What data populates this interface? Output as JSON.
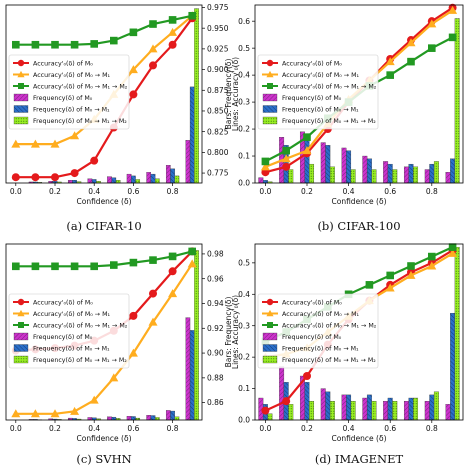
{
  "colors": {
    "m0": "#e41a1c",
    "m0m1": "#ffad1f",
    "m0m1m2": "#229922",
    "bar_m0": "#cc33cc",
    "bar_m0m1": "#2b6fc9",
    "bar_m0m1m2": "#99ee22"
  },
  "legend": [
    "Accuracy'₀(δ) of M₀",
    "Accuracy'₀(δ) of M₀ → M₁",
    "Accuracy'₀(δ) of M₀ → M₁ → M₂",
    "Frequency(δ) of M₀",
    "Frequency(δ) of M₀ → M₁",
    "Frequency(δ) of M₀ → M₁ → M₂"
  ],
  "chart_data": [
    {
      "type": "bar",
      "panel": "a",
      "caption": "(a) CIFAR-10",
      "xlabel": "Confidence (δ)",
      "ylabel_right": "Lines: Accuracy'₀(δ)",
      "x_ticks": [
        "0.0",
        "0.2",
        "0.4",
        "0.6",
        "0.8"
      ],
      "xlim": [
        -0.05,
        0.95
      ],
      "right_ticks": [
        "0.775",
        "0.800",
        "0.825",
        "0.850",
        "0.875",
        "0.900",
        "0.925",
        "0.950",
        "0.975"
      ],
      "right_lim": [
        0.763,
        0.978
      ],
      "bar_lim": [
        0,
        0.5
      ],
      "bar_x": [
        0.0,
        0.1,
        0.2,
        0.3,
        0.4,
        0.5,
        0.6,
        0.7,
        0.8,
        0.9
      ],
      "bars": [
        [
          0.0,
          0.003,
          0.005,
          0.008,
          0.012,
          0.018,
          0.025,
          0.03,
          0.05,
          0.12
        ],
        [
          0.0,
          0.003,
          0.005,
          0.008,
          0.01,
          0.015,
          0.02,
          0.025,
          0.04,
          0.27
        ],
        [
          0.0,
          0.002,
          0.003,
          0.004,
          0.005,
          0.008,
          0.01,
          0.012,
          0.02,
          0.49
        ]
      ],
      "line_x": [
        0.0,
        0.1,
        0.2,
        0.3,
        0.4,
        0.5,
        0.6,
        0.7,
        0.8,
        0.9
      ],
      "lines": [
        [
          0.77,
          0.77,
          0.77,
          0.775,
          0.79,
          0.83,
          0.87,
          0.905,
          0.93,
          0.962
        ],
        [
          0.81,
          0.81,
          0.81,
          0.82,
          0.84,
          0.87,
          0.9,
          0.925,
          0.945,
          0.965
        ],
        [
          0.93,
          0.93,
          0.93,
          0.93,
          0.931,
          0.935,
          0.945,
          0.955,
          0.96,
          0.965
        ]
      ],
      "legend_show": true
    },
    {
      "type": "bar",
      "panel": "b",
      "caption": "(b) CIFAR-100",
      "xlabel": "Confidence (δ)",
      "ylabel_left": "Bars: Frequency(δ)",
      "x_ticks": [
        "0.0",
        "0.2",
        "0.4",
        "0.6",
        "0.8"
      ],
      "xlim": [
        -0.05,
        0.95
      ],
      "left_ticks": [
        "0.0",
        "0.1",
        "0.2",
        "0.3",
        "0.4",
        "0.5",
        "0.6"
      ],
      "left_lim": [
        0,
        0.66
      ],
      "bar_x": [
        0.0,
        0.1,
        0.2,
        0.3,
        0.4,
        0.5,
        0.6,
        0.7,
        0.8,
        0.9
      ],
      "bars": [
        [
          0.02,
          0.17,
          0.19,
          0.15,
          0.13,
          0.1,
          0.08,
          0.06,
          0.05,
          0.04
        ],
        [
          0.01,
          0.14,
          0.18,
          0.14,
          0.12,
          0.09,
          0.07,
          0.07,
          0.07,
          0.09
        ],
        [
          0.005,
          0.05,
          0.07,
          0.06,
          0.05,
          0.05,
          0.05,
          0.06,
          0.08,
          0.61
        ]
      ],
      "line_x": [
        0.0,
        0.1,
        0.2,
        0.3,
        0.4,
        0.5,
        0.6,
        0.7,
        0.8,
        0.9
      ],
      "lines": [
        [
          0.04,
          0.06,
          0.11,
          0.2,
          0.3,
          0.38,
          0.46,
          0.53,
          0.6,
          0.65
        ],
        [
          0.06,
          0.09,
          0.12,
          0.22,
          0.31,
          0.38,
          0.45,
          0.52,
          0.59,
          0.64
        ],
        [
          0.08,
          0.12,
          0.17,
          0.24,
          0.3,
          0.36,
          0.4,
          0.45,
          0.5,
          0.54
        ]
      ],
      "legend_show": true
    },
    {
      "type": "bar",
      "panel": "c",
      "caption": "(c) SVHN",
      "xlabel": "Confidence (δ)",
      "ylabel_right": "Lines: Accuracy'₀(δ)",
      "x_ticks": [
        "0.0",
        "0.2",
        "0.4",
        "0.6",
        "0.8"
      ],
      "xlim": [
        -0.05,
        0.95
      ],
      "right_ticks": [
        "0.86",
        "0.88",
        "0.90",
        "0.92",
        "0.94",
        "0.96",
        "0.98"
      ],
      "right_lim": [
        0.846,
        0.988
      ],
      "bar_lim": [
        0,
        0.55
      ],
      "bar_x": [
        0.0,
        0.1,
        0.2,
        0.3,
        0.4,
        0.5,
        0.6,
        0.7,
        0.8,
        0.9
      ],
      "bars": [
        [
          0.0,
          0.002,
          0.004,
          0.006,
          0.008,
          0.01,
          0.012,
          0.015,
          0.03,
          0.32
        ],
        [
          0.0,
          0.002,
          0.003,
          0.005,
          0.007,
          0.009,
          0.011,
          0.014,
          0.028,
          0.28
        ],
        [
          0.0,
          0.001,
          0.002,
          0.003,
          0.004,
          0.005,
          0.006,
          0.008,
          0.01,
          0.53
        ]
      ],
      "line_x": [
        0.0,
        0.1,
        0.2,
        0.3,
        0.4,
        0.5,
        0.6,
        0.7,
        0.8,
        0.9
      ],
      "lines": [
        [
          0.902,
          0.903,
          0.904,
          0.906,
          0.91,
          0.918,
          0.93,
          0.948,
          0.966,
          0.982
        ],
        [
          0.851,
          0.851,
          0.851,
          0.853,
          0.862,
          0.88,
          0.9,
          0.925,
          0.948,
          0.972
        ],
        [
          0.97,
          0.97,
          0.97,
          0.97,
          0.97,
          0.971,
          0.973,
          0.975,
          0.978,
          0.982
        ]
      ],
      "legend_show": true
    },
    {
      "type": "bar",
      "panel": "d",
      "caption": "(d) IMAGENET",
      "xlabel": "Confidence (δ)",
      "ylabel_left": "Bars: Frequency(δ)",
      "x_ticks": [
        "0.0",
        "0.2",
        "0.4",
        "0.6",
        "0.8"
      ],
      "xlim": [
        -0.05,
        0.95
      ],
      "left_ticks": [
        "0.0",
        "0.1",
        "0.2",
        "0.3",
        "0.4",
        "0.5"
      ],
      "left_lim": [
        0,
        0.56
      ],
      "bar_x": [
        0.0,
        0.1,
        0.2,
        0.3,
        0.4,
        0.5,
        0.6,
        0.7,
        0.8,
        0.9
      ],
      "bars": [
        [
          0.07,
          0.17,
          0.14,
          0.1,
          0.08,
          0.07,
          0.06,
          0.06,
          0.06,
          0.05
        ],
        [
          0.05,
          0.12,
          0.12,
          0.09,
          0.08,
          0.08,
          0.07,
          0.07,
          0.08,
          0.34
        ],
        [
          0.02,
          0.05,
          0.06,
          0.06,
          0.06,
          0.06,
          0.06,
          0.07,
          0.09,
          0.55
        ]
      ],
      "line_x": [
        0.0,
        0.1,
        0.2,
        0.3,
        0.4,
        0.5,
        0.6,
        0.7,
        0.8,
        0.9
      ],
      "lines": [
        [
          0.03,
          0.06,
          0.14,
          0.24,
          0.32,
          0.38,
          0.43,
          0.47,
          0.5,
          0.54
        ],
        [
          0.2,
          0.21,
          0.23,
          0.28,
          0.33,
          0.38,
          0.42,
          0.46,
          0.49,
          0.53
        ],
        [
          0.25,
          0.28,
          0.32,
          0.36,
          0.4,
          0.43,
          0.46,
          0.49,
          0.52,
          0.55
        ]
      ],
      "legend_show": true
    }
  ]
}
